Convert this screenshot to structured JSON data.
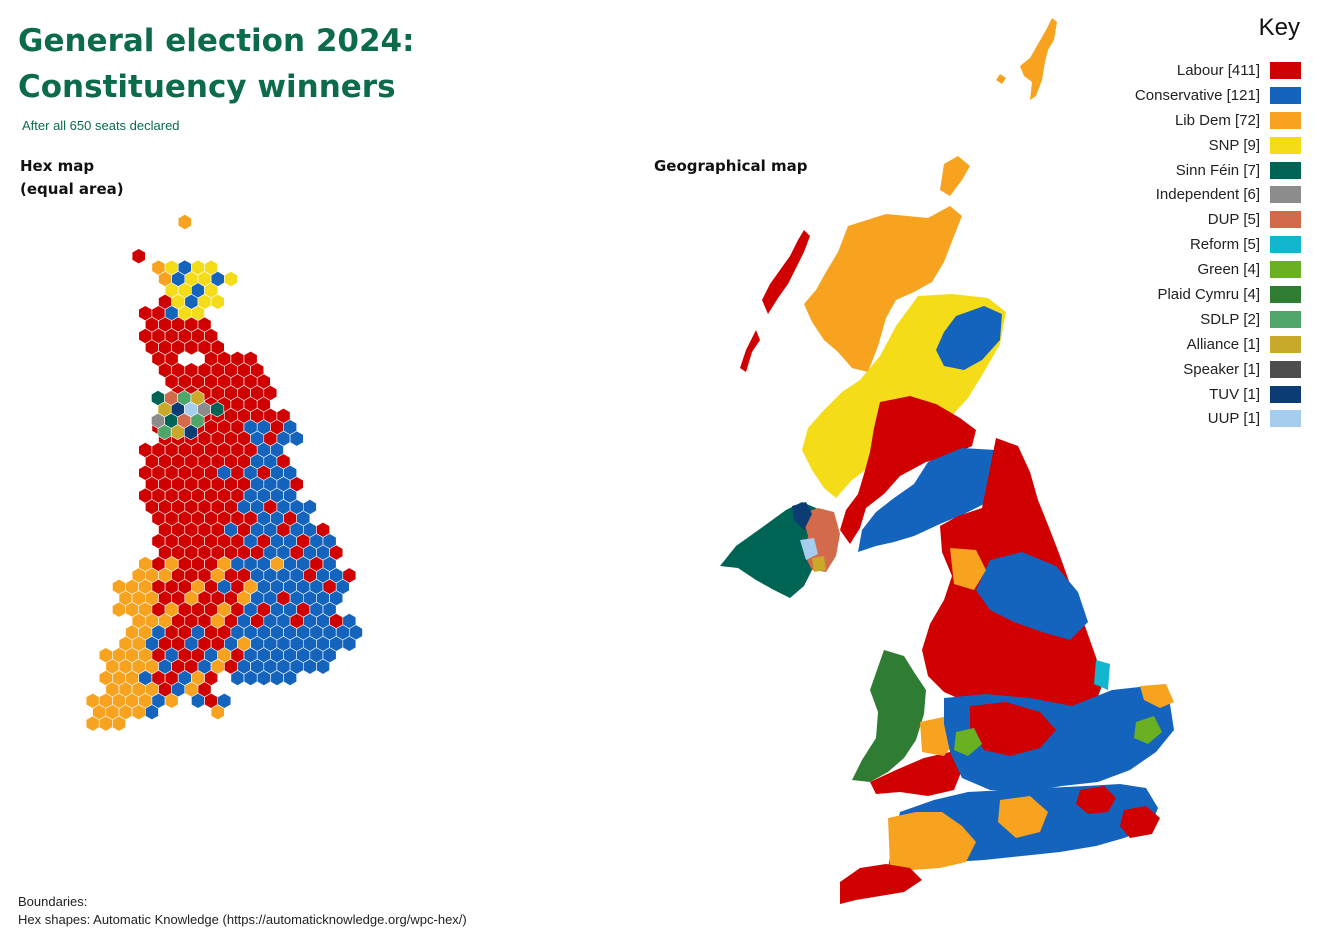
{
  "title": {
    "line1": "General election 2024:",
    "line2": "Constituency winners"
  },
  "subtitle": "After all 650 seats declared",
  "hex_map": {
    "label_line1": "Hex map",
    "label_line2": "(equal area)"
  },
  "geo_map": {
    "label": "Geographical map"
  },
  "key": {
    "title": "Key",
    "items": [
      {
        "label": "Labour [411]",
        "color": "#d10000"
      },
      {
        "label": "Conservative [121]",
        "color": "#1464be"
      },
      {
        "label": "Lib Dem [72]",
        "color": "#f7a320"
      },
      {
        "label": "SNP [9]",
        "color": "#f5dc18"
      },
      {
        "label": "Sinn Féin [7]",
        "color": "#006455"
      },
      {
        "label": "Independent [6]",
        "color": "#8c8c8c"
      },
      {
        "label": "DUP [5]",
        "color": "#d46a4c"
      },
      {
        "label": "Reform [5]",
        "color": "#12b6cf"
      },
      {
        "label": "Green [4]",
        "color": "#6ab023"
      },
      {
        "label": "Plaid Cymru [4]",
        "color": "#2e7d32"
      },
      {
        "label": "SDLP [2]",
        "color": "#4fa56a"
      },
      {
        "label": "Alliance [1]",
        "color": "#c8a92a"
      },
      {
        "label": "Speaker [1]",
        "color": "#4d4d4d"
      },
      {
        "label": "TUV [1]",
        "color": "#0b3c73"
      },
      {
        "label": "UUP [1]",
        "color": "#a6cdee"
      }
    ]
  },
  "footer": {
    "line1": "Boundaries:",
    "line2": "Hex shapes: Automatic Knowledge (https://automaticknowledge.org/wpc-hex/)"
  }
}
